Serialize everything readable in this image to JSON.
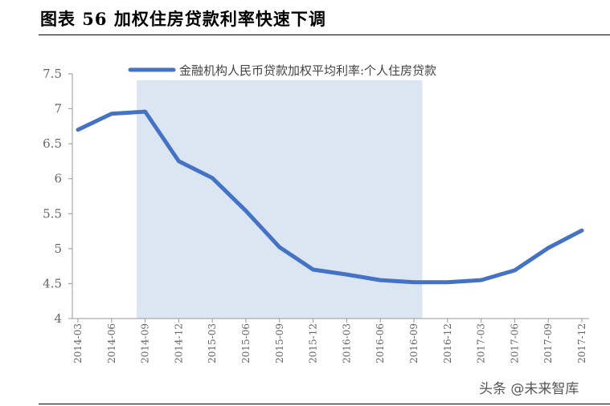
{
  "figure": {
    "title": "图表 56  加权住房贷款利率快速下调",
    "watermark": "头条 @未来智库"
  },
  "chart_data": {
    "type": "line",
    "x": [
      "2014-03",
      "2014-06",
      "2014-09",
      "2014-12",
      "2015-03",
      "2015-06",
      "2015-09",
      "2015-12",
      "2016-03",
      "2016-06",
      "2016-09",
      "2016-12",
      "2017-03",
      "2017-06",
      "2017-09",
      "2017-12"
    ],
    "series": [
      {
        "name": "金融机构人民币贷款加权平均利率:个人住房贷款",
        "values": [
          6.7,
          6.93,
          6.96,
          6.25,
          6.01,
          5.54,
          5.02,
          4.7,
          4.63,
          4.55,
          4.52,
          4.52,
          4.55,
          4.69,
          5.01,
          5.26
        ]
      }
    ],
    "ylim": [
      4,
      7.5
    ],
    "yticks": [
      "7.5",
      "7",
      "6.5",
      "6",
      "5.5",
      "5",
      "4.5",
      "4"
    ],
    "shaded_range": [
      "2014-09",
      "2016-09"
    ],
    "legend_position": "top",
    "grid": false,
    "colors": {
      "line": "#4472c4",
      "shade": "#dce6f2",
      "axis": "#999999"
    }
  }
}
